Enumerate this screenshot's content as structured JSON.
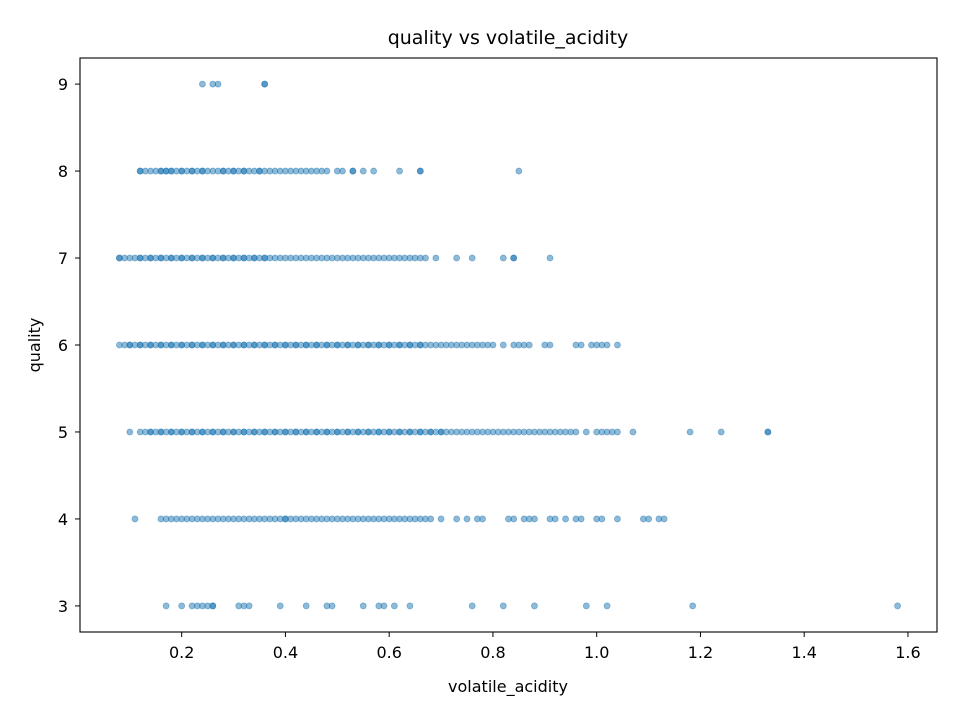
{
  "chart_data": {
    "type": "scatter",
    "title": "quality vs volatile_acidity",
    "xlabel": "volatile_acidity",
    "ylabel": "quality",
    "xlim": [
      0.004,
      1.656
    ],
    "ylim": [
      2.7,
      9.3
    ],
    "xticks": [
      0.2,
      0.4,
      0.6,
      0.8,
      1.0,
      1.2,
      1.4,
      1.6
    ],
    "xtick_labels": [
      "0.2",
      "0.4",
      "0.6",
      "0.8",
      "1.0",
      "1.2",
      "1.4",
      "1.6"
    ],
    "yticks": [
      3,
      4,
      5,
      6,
      7,
      8,
      9
    ],
    "ytick_labels": [
      "3",
      "4",
      "5",
      "6",
      "7",
      "8",
      "9"
    ],
    "grid": false,
    "point_color": "#1f77b4",
    "point_alpha": 0.5,
    "series": [
      {
        "points": [
          {
            "quality": 9,
            "x": [
              0.24,
              0.26,
              0.27,
              0.36,
              0.36
            ]
          },
          {
            "quality": 8,
            "x": [
              0.12,
              0.12,
              0.13,
              0.14,
              0.15,
              0.16,
              0.16,
              0.17,
              0.17,
              0.18,
              0.18,
              0.19,
              0.2,
              0.2,
              0.21,
              0.22,
              0.22,
              0.23,
              0.24,
              0.24,
              0.25,
              0.26,
              0.27,
              0.28,
              0.28,
              0.29,
              0.3,
              0.3,
              0.31,
              0.32,
              0.32,
              0.33,
              0.34,
              0.35,
              0.35,
              0.36,
              0.37,
              0.38,
              0.39,
              0.4,
              0.41,
              0.42,
              0.43,
              0.44,
              0.45,
              0.46,
              0.47,
              0.48,
              0.5,
              0.51,
              0.53,
              0.53,
              0.55,
              0.57,
              0.62,
              0.66,
              0.66,
              0.85
            ]
          },
          {
            "quality": 7,
            "x": [
              0.08,
              0.08,
              0.09,
              0.1,
              0.11,
              0.12,
              0.12,
              0.13,
              0.14,
              0.14,
              0.15,
              0.16,
              0.16,
              0.17,
              0.18,
              0.18,
              0.19,
              0.2,
              0.2,
              0.21,
              0.22,
              0.22,
              0.23,
              0.24,
              0.24,
              0.25,
              0.26,
              0.26,
              0.27,
              0.28,
              0.28,
              0.29,
              0.3,
              0.3,
              0.31,
              0.32,
              0.32,
              0.33,
              0.34,
              0.34,
              0.35,
              0.36,
              0.36,
              0.37,
              0.38,
              0.39,
              0.4,
              0.41,
              0.42,
              0.43,
              0.44,
              0.45,
              0.46,
              0.47,
              0.48,
              0.49,
              0.5,
              0.51,
              0.52,
              0.53,
              0.54,
              0.55,
              0.56,
              0.57,
              0.58,
              0.59,
              0.6,
              0.61,
              0.62,
              0.63,
              0.64,
              0.65,
              0.66,
              0.67,
              0.69,
              0.73,
              0.76,
              0.82,
              0.84,
              0.84,
              0.91
            ]
          },
          {
            "quality": 6,
            "x": [
              0.08,
              0.09,
              0.1,
              0.1,
              0.11,
              0.12,
              0.12,
              0.13,
              0.14,
              0.14,
              0.15,
              0.16,
              0.16,
              0.17,
              0.18,
              0.18,
              0.19,
              0.2,
              0.2,
              0.21,
              0.22,
              0.22,
              0.23,
              0.24,
              0.24,
              0.25,
              0.26,
              0.26,
              0.27,
              0.28,
              0.28,
              0.29,
              0.3,
              0.3,
              0.31,
              0.32,
              0.32,
              0.33,
              0.34,
              0.34,
              0.35,
              0.36,
              0.36,
              0.37,
              0.38,
              0.38,
              0.39,
              0.4,
              0.4,
              0.41,
              0.42,
              0.42,
              0.43,
              0.44,
              0.44,
              0.45,
              0.46,
              0.46,
              0.47,
              0.48,
              0.48,
              0.49,
              0.5,
              0.5,
              0.51,
              0.52,
              0.52,
              0.53,
              0.54,
              0.54,
              0.55,
              0.56,
              0.56,
              0.57,
              0.58,
              0.58,
              0.59,
              0.6,
              0.6,
              0.61,
              0.62,
              0.62,
              0.63,
              0.64,
              0.64,
              0.65,
              0.66,
              0.66,
              0.67,
              0.68,
              0.69,
              0.7,
              0.71,
              0.72,
              0.73,
              0.74,
              0.75,
              0.76,
              0.77,
              0.78,
              0.79,
              0.8,
              0.82,
              0.84,
              0.85,
              0.86,
              0.87,
              0.9,
              0.91,
              0.96,
              0.97,
              0.99,
              1.0,
              1.01,
              1.02,
              1.04
            ]
          },
          {
            "quality": 5,
            "x": [
              0.1,
              0.12,
              0.13,
              0.14,
              0.14,
              0.15,
              0.16,
              0.16,
              0.17,
              0.18,
              0.18,
              0.19,
              0.2,
              0.2,
              0.21,
              0.22,
              0.22,
              0.23,
              0.24,
              0.24,
              0.25,
              0.26,
              0.26,
              0.27,
              0.28,
              0.28,
              0.29,
              0.3,
              0.3,
              0.31,
              0.32,
              0.32,
              0.33,
              0.34,
              0.34,
              0.35,
              0.36,
              0.36,
              0.37,
              0.38,
              0.38,
              0.39,
              0.4,
              0.4,
              0.41,
              0.42,
              0.42,
              0.43,
              0.44,
              0.44,
              0.45,
              0.46,
              0.46,
              0.47,
              0.48,
              0.48,
              0.49,
              0.5,
              0.5,
              0.51,
              0.52,
              0.52,
              0.53,
              0.54,
              0.54,
              0.55,
              0.56,
              0.56,
              0.57,
              0.58,
              0.58,
              0.59,
              0.6,
              0.6,
              0.61,
              0.62,
              0.62,
              0.63,
              0.64,
              0.64,
              0.65,
              0.66,
              0.66,
              0.67,
              0.68,
              0.68,
              0.69,
              0.7,
              0.7,
              0.71,
              0.72,
              0.73,
              0.74,
              0.75,
              0.76,
              0.77,
              0.78,
              0.79,
              0.8,
              0.81,
              0.82,
              0.83,
              0.84,
              0.85,
              0.86,
              0.87,
              0.88,
              0.89,
              0.9,
              0.91,
              0.92,
              0.93,
              0.94,
              0.95,
              0.96,
              0.98,
              1.0,
              1.01,
              1.02,
              1.03,
              1.04,
              1.07,
              1.18,
              1.24,
              1.33,
              1.33
            ]
          },
          {
            "quality": 4,
            "x": [
              0.11,
              0.16,
              0.17,
              0.18,
              0.19,
              0.2,
              0.21,
              0.22,
              0.23,
              0.24,
              0.25,
              0.26,
              0.27,
              0.28,
              0.29,
              0.3,
              0.31,
              0.32,
              0.33,
              0.34,
              0.35,
              0.36,
              0.37,
              0.38,
              0.39,
              0.4,
              0.4,
              0.41,
              0.42,
              0.43,
              0.44,
              0.45,
              0.46,
              0.47,
              0.48,
              0.49,
              0.5,
              0.51,
              0.52,
              0.53,
              0.54,
              0.55,
              0.56,
              0.57,
              0.58,
              0.59,
              0.6,
              0.61,
              0.62,
              0.63,
              0.64,
              0.65,
              0.66,
              0.67,
              0.68,
              0.7,
              0.73,
              0.75,
              0.77,
              0.78,
              0.83,
              0.84,
              0.86,
              0.87,
              0.88,
              0.91,
              0.92,
              0.94,
              0.96,
              0.97,
              1.0,
              1.01,
              1.04,
              1.09,
              1.1,
              1.12,
              1.13
            ]
          },
          {
            "quality": 3,
            "x": [
              0.17,
              0.2,
              0.22,
              0.23,
              0.24,
              0.25,
              0.26,
              0.26,
              0.31,
              0.32,
              0.33,
              0.39,
              0.44,
              0.48,
              0.49,
              0.55,
              0.58,
              0.59,
              0.61,
              0.64,
              0.76,
              0.82,
              0.88,
              0.98,
              1.02,
              1.185,
              1.58
            ]
          }
        ]
      }
    ]
  }
}
